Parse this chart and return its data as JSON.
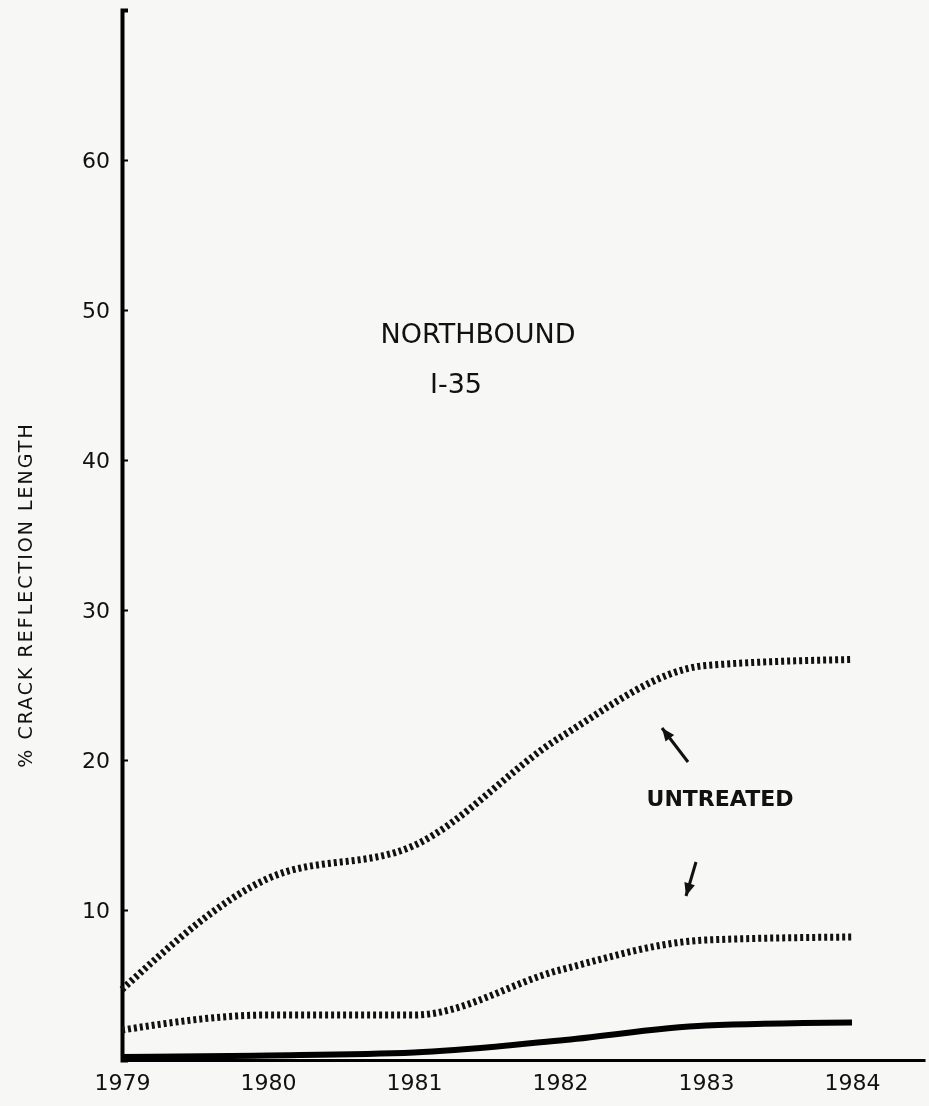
{
  "chart_data": {
    "type": "line",
    "title": "NORTHBOUND",
    "subtitle": "I-35",
    "ylabel": "% CRACK REFLECTION LENGTH",
    "annotations": [
      "UNTREATED"
    ],
    "x": [
      1979,
      1980,
      1981,
      1982,
      1983,
      1984
    ],
    "xlim": [
      1979,
      1984.5
    ],
    "xticks": [
      1979,
      1980,
      1981,
      1982,
      1983,
      1984
    ],
    "ylim": [
      0,
      70
    ],
    "yticks": [
      10,
      20,
      30,
      40,
      50,
      60
    ],
    "grid": false,
    "series": [
      {
        "color": "#111111",
        "line_style": "dotted",
        "values": [
          4.7,
          12.1,
          14.3,
          21.5,
          26.3,
          26.7
        ]
      },
      {
        "color": "#111111",
        "line_style": "dotted",
        "values": [
          2.0,
          3.0,
          3.0,
          6.0,
          8.0,
          8.2
        ]
      },
      {
        "color": "#000000",
        "line_style": "solid",
        "values": [
          0.2,
          0.3,
          0.5,
          1.3,
          2.3,
          2.5
        ]
      }
    ]
  }
}
